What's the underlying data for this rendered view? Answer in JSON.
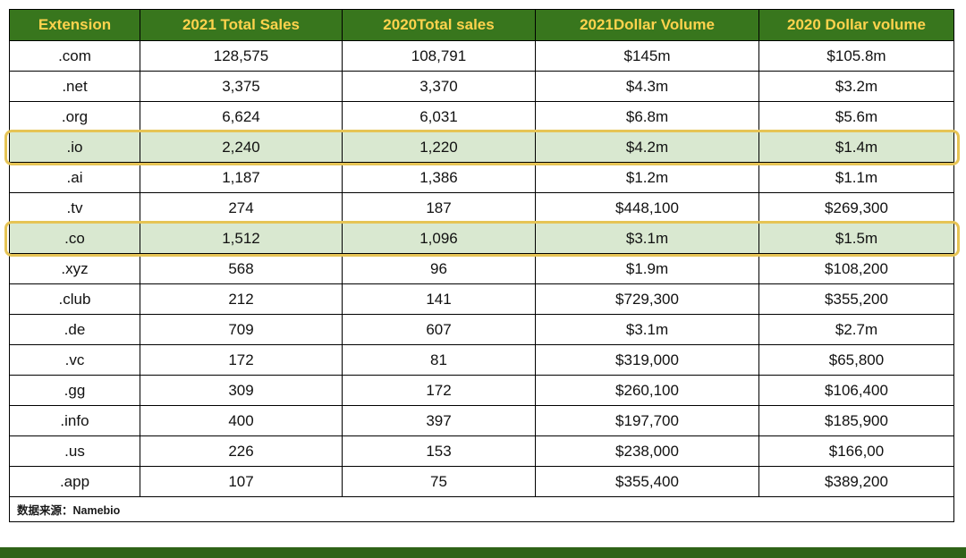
{
  "chart_data": {
    "type": "table",
    "columns": [
      "Extension",
      "2021 Total Sales",
      "2020Total sales",
      "2021Dollar Volume",
      "2020 Dollar volume"
    ],
    "rows": [
      {
        "cells": [
          ".com",
          "128,575",
          "108,791",
          "$145m",
          "$105.8m"
        ],
        "highlighted": false
      },
      {
        "cells": [
          ".net",
          "3,375",
          "3,370",
          "$4.3m",
          "$3.2m"
        ],
        "highlighted": false
      },
      {
        "cells": [
          ".org",
          "6,624",
          "6,031",
          "$6.8m",
          "$5.6m"
        ],
        "highlighted": false
      },
      {
        "cells": [
          ".io",
          "2,240",
          "1,220",
          "$4.2m",
          "$1.4m"
        ],
        "highlighted": true
      },
      {
        "cells": [
          ".ai",
          "1,187",
          "1,386",
          "$1.2m",
          "$1.1m"
        ],
        "highlighted": false
      },
      {
        "cells": [
          ".tv",
          "274",
          "187",
          "$448,100",
          "$269,300"
        ],
        "highlighted": false
      },
      {
        "cells": [
          ".co",
          "1,512",
          "1,096",
          "$3.1m",
          "$1.5m"
        ],
        "highlighted": true
      },
      {
        "cells": [
          ".xyz",
          "568",
          "96",
          "$1.9m",
          "$108,200"
        ],
        "highlighted": false
      },
      {
        "cells": [
          ".club",
          "212",
          "141",
          "$729,300",
          "$355,200"
        ],
        "highlighted": false
      },
      {
        "cells": [
          ".de",
          "709",
          "607",
          "$3.1m",
          "$2.7m"
        ],
        "highlighted": false
      },
      {
        "cells": [
          ".vc",
          "172",
          "81",
          "$319,000",
          "$65,800"
        ],
        "highlighted": false
      },
      {
        "cells": [
          ".gg",
          "309",
          "172",
          "$260,100",
          "$106,400"
        ],
        "highlighted": false
      },
      {
        "cells": [
          ".info",
          "400",
          "397",
          "$197,700",
          "$185,900"
        ],
        "highlighted": false
      },
      {
        "cells": [
          ".us",
          "226",
          "153",
          "$238,000",
          "$166,00"
        ],
        "highlighted": false
      },
      {
        "cells": [
          ".app",
          "107",
          "75",
          "$355,400",
          "$389,200"
        ],
        "highlighted": false
      }
    ],
    "source_note": "数据来源：Namebio"
  },
  "colors": {
    "header_bg": "#38761d",
    "header_text": "#ffd34d",
    "highlight_bg": "#d9e8d0",
    "highlight_border": "#e6c455",
    "bottom_bar": "#2f6318",
    "table_border": "#000000"
  }
}
